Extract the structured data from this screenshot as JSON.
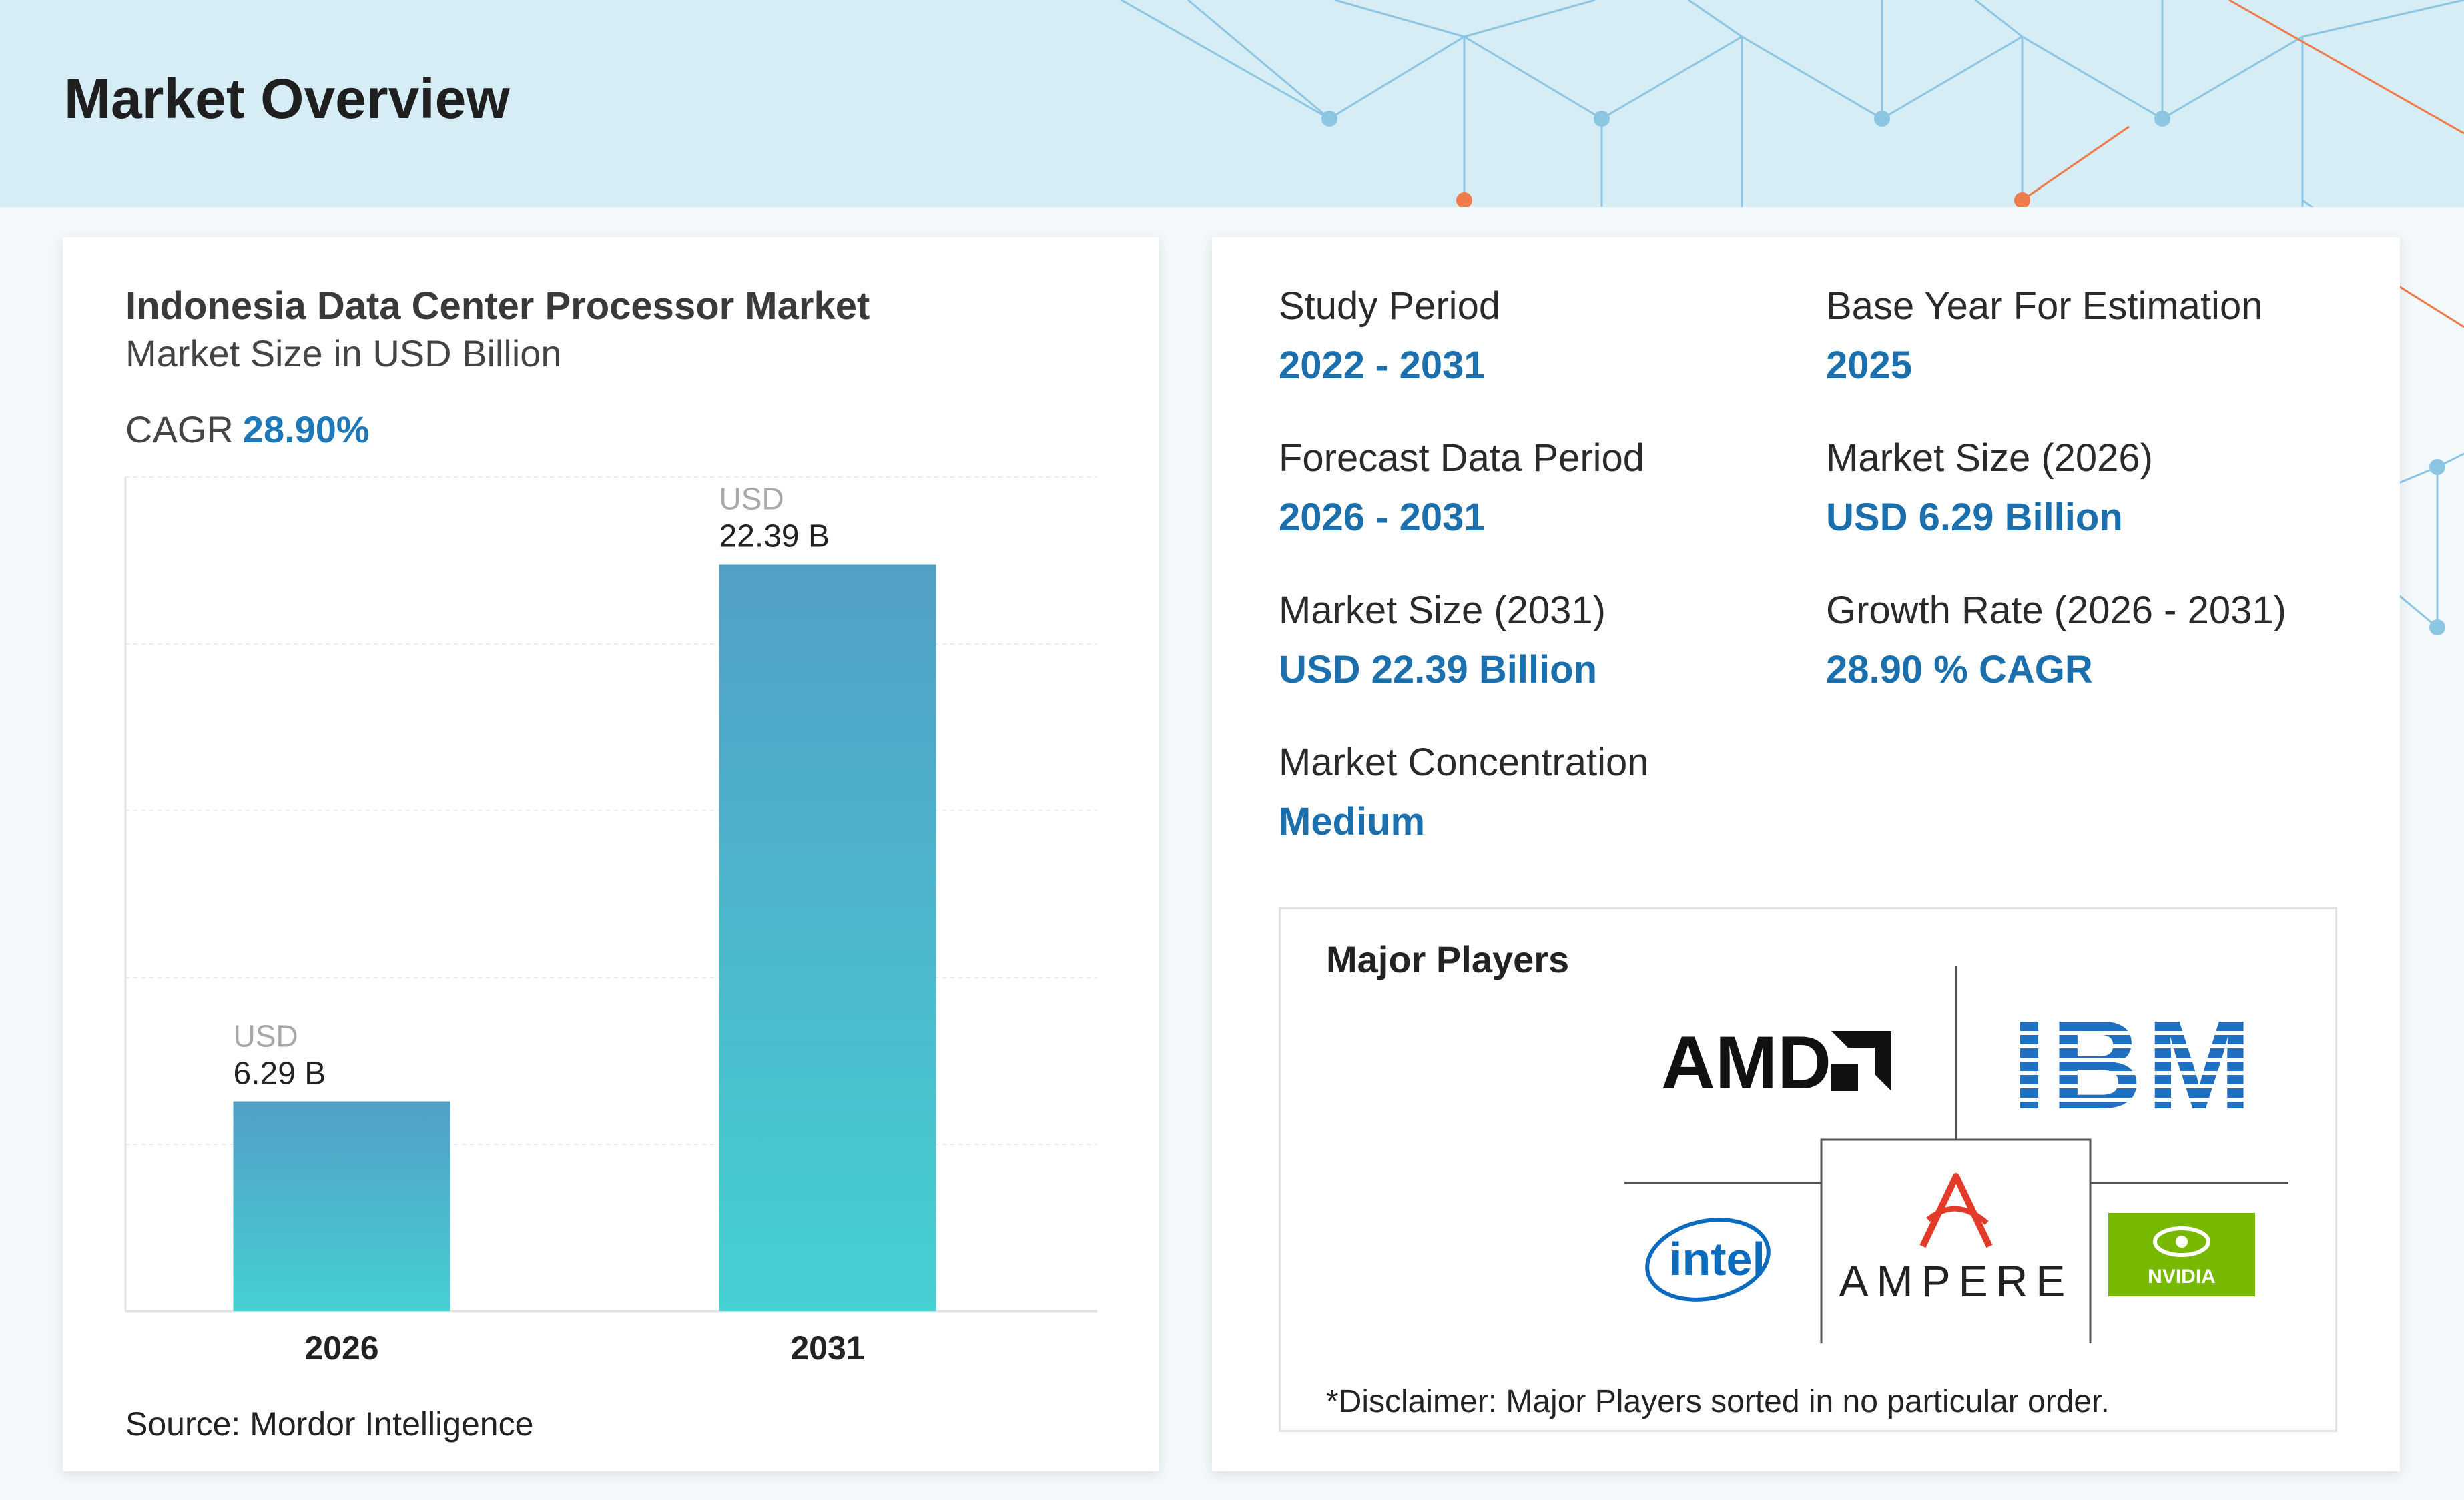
{
  "header": {
    "title": "Market Overview"
  },
  "chart_data": {
    "type": "bar",
    "title": "Indonesia Data Center Processor Market",
    "subtitle": "Market Size in USD Billion",
    "cagr_label": "CAGR",
    "cagr_value": "28.90%",
    "categories": [
      "2026",
      "2031"
    ],
    "values": [
      6.29,
      22.39
    ],
    "value_labels": [
      "6.29 B",
      "22.39 B"
    ],
    "value_prefix": "USD",
    "ylim": [
      0,
      25
    ],
    "grid": true,
    "bar_color_top": "#529fc6",
    "bar_color_bottom": "#45d0d2",
    "source": "Source: Mordor Intelligence"
  },
  "stats": {
    "study_period": {
      "label": "Study Period",
      "value": "2022 - 2031"
    },
    "base_year": {
      "label": "Base Year For Estimation",
      "value": "2025"
    },
    "forecast_period": {
      "label": "Forecast Data Period",
      "value": "2026 - 2031"
    },
    "market_size_2026": {
      "label": "Market Size (2026)",
      "value": "USD 6.29 Billion"
    },
    "market_size_2031": {
      "label": "Market Size (2031)",
      "value": "USD 22.39 Billion"
    },
    "growth_rate": {
      "label": "Growth Rate (2026 - 2031)",
      "value": "28.90 % CAGR"
    },
    "concentration": {
      "label": "Market Concentration",
      "value": "Medium"
    }
  },
  "players": {
    "title": "Major Players",
    "logos": [
      "AMD",
      "IBM",
      "intel",
      "AMPERE",
      "NVIDIA"
    ],
    "disclaimer": "*Disclaimer: Major Players sorted in no particular order."
  },
  "colors": {
    "accent": "#1a6fac",
    "header_bg": "#d7edf5",
    "network_blue": "#8cc6e3",
    "network_orange": "#ef7a4a"
  }
}
